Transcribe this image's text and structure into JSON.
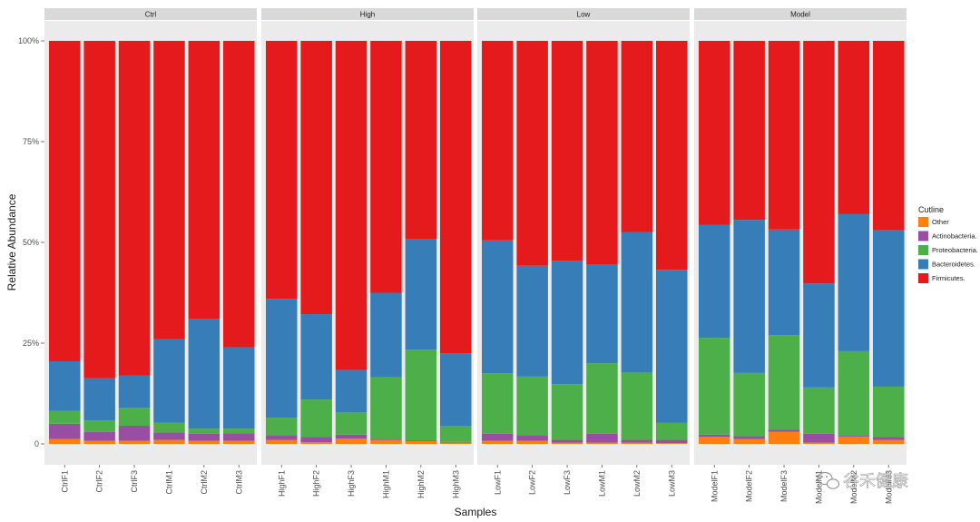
{
  "chart_data": {
    "type": "bar",
    "stacked": true,
    "xlabel": "Samples",
    "ylabel": "Relative Abundance",
    "ylim": [
      0,
      1
    ],
    "yticks": [
      "0",
      "25%",
      "50%",
      "75%",
      "100%"
    ],
    "legend": {
      "title": "Cutline",
      "placement": "right",
      "entries": [
        "Other",
        "Actinobacteria.",
        "Proteobacteria.",
        "Bacteroidetes.",
        "Firmicutes."
      ]
    },
    "colors": {
      "Other": "#ff7f0e",
      "Actinobacteria.": "#984ea3",
      "Proteobacteria.": "#4daf4a",
      "Bacteroidetes.": "#377eb8",
      "Firmicutes.": "#e41a1c"
    },
    "stack_order": [
      "Other",
      "Actinobacteria.",
      "Proteobacteria.",
      "Bacteroidetes.",
      "Firmicutes."
    ],
    "facets": [
      {
        "name": "Ctrl",
        "samples": [
          {
            "label": "CtrlF1",
            "values": [
              0.012,
              0.038,
              0.032,
              0.123,
              0.795
            ]
          },
          {
            "label": "CtrlF2",
            "values": [
              0.008,
              0.022,
              0.028,
              0.105,
              0.837
            ]
          },
          {
            "label": "CtrlF3",
            "values": [
              0.008,
              0.037,
              0.045,
              0.08,
              0.83
            ]
          },
          {
            "label": "CtrlM1",
            "values": [
              0.01,
              0.018,
              0.025,
              0.207,
              0.74
            ]
          },
          {
            "label": "CtrlM2",
            "values": [
              0.008,
              0.017,
              0.013,
              0.272,
              0.69
            ]
          },
          {
            "label": "CtrlM3",
            "values": [
              0.008,
              0.018,
              0.012,
              0.202,
              0.76
            ]
          }
        ]
      },
      {
        "name": "High",
        "samples": [
          {
            "label": "HighF1",
            "values": [
              0.01,
              0.012,
              0.043,
              0.295,
              0.64
            ]
          },
          {
            "label": "HighF2",
            "values": [
              0.004,
              0.013,
              0.093,
              0.212,
              0.678
            ]
          },
          {
            "label": "HighF3",
            "values": [
              0.013,
              0.01,
              0.055,
              0.105,
              0.817
            ]
          },
          {
            "label": "HighM1",
            "values": [
              0.01,
              0.003,
              0.152,
              0.21,
              0.625
            ]
          },
          {
            "label": "HighM2",
            "values": [
              0.007,
              0.002,
              0.225,
              0.275,
              0.491
            ]
          },
          {
            "label": "HighM3",
            "values": [
              0.003,
              0.002,
              0.04,
              0.18,
              0.775
            ]
          }
        ]
      },
      {
        "name": "Low",
        "samples": [
          {
            "label": "LowF1",
            "values": [
              0.008,
              0.017,
              0.15,
              0.33,
              0.495
            ]
          },
          {
            "label": "LowF2",
            "values": [
              0.008,
              0.014,
              0.145,
              0.275,
              0.558
            ]
          },
          {
            "label": "LowF3",
            "values": [
              0.003,
              0.007,
              0.138,
              0.307,
              0.545
            ]
          },
          {
            "label": "LowM1",
            "values": [
              0.003,
              0.022,
              0.175,
              0.245,
              0.555
            ]
          },
          {
            "label": "LowM2",
            "values": [
              0.003,
              0.007,
              0.167,
              0.348,
              0.475
            ]
          },
          {
            "label": "LowM3",
            "values": [
              0.002,
              0.008,
              0.042,
              0.38,
              0.568
            ]
          }
        ]
      },
      {
        "name": "Model",
        "samples": [
          {
            "label": "ModelF1",
            "values": [
              0.018,
              0.005,
              0.24,
              0.28,
              0.457
            ]
          },
          {
            "label": "ModelF2",
            "values": [
              0.012,
              0.007,
              0.157,
              0.38,
              0.444
            ]
          },
          {
            "label": "ModelF3",
            "values": [
              0.03,
              0.005,
              0.235,
              0.262,
              0.468
            ]
          },
          {
            "label": "ModelM1",
            "values": [
              0.003,
              0.022,
              0.115,
              0.258,
              0.602
            ]
          },
          {
            "label": "ModelM2",
            "values": [
              0.018,
              0.002,
              0.21,
              0.34,
              0.43
            ]
          },
          {
            "label": "ModelM3",
            "values": [
              0.01,
              0.007,
              0.125,
              0.388,
              0.47
            ]
          }
        ]
      }
    ]
  },
  "watermark": {
    "text": "谷禾健康",
    "icon": "wechat-icon"
  }
}
